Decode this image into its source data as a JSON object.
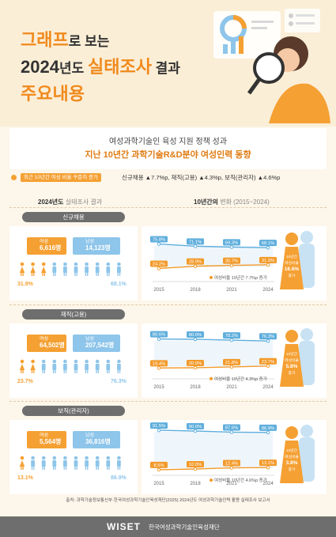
{
  "title": {
    "line1_a": "그래프",
    "line1_b": "로 보는",
    "line2_a": "2024",
    "line2_b": "년도 ",
    "line2_c": "실태조사",
    "line2_d": " 결과",
    "line3": "주요내용"
  },
  "subtitle1": "여성과학기술인 육성 지원 정책 성과",
  "subtitle2": "지난 10년간 과학기술R&D분야 여성인력 동향",
  "highlight_label": "최근 10년간 여성 비율 꾸준히 증가",
  "highlight_text": "신규채용 ▲7.7%p, 재직(고용) ▲4.3%p, 보직(관리자) ▲4.6%p",
  "col_left": {
    "title": "2024년도",
    "sub": "실태조사 결과"
  },
  "col_right": {
    "title": "10년간의",
    "sub": "변화 (2015~2024)"
  },
  "colors": {
    "female": "#f5a033",
    "male": "#8ec5ea",
    "female_line": "#f39a2a",
    "male_line": "#5faedc"
  },
  "sections": [
    {
      "tag": "신규채용",
      "female_label": "여성",
      "female_value": "6,616명",
      "male_label": "남성",
      "male_value": "14,123명",
      "female_pct": "31.9%",
      "male_pct": "68.1%",
      "female_figures": 3,
      "change_note": "여성비율 10년간 7.7%p 증가",
      "callout": [
        "10년간",
        "여성비율",
        "16.6%",
        "증가"
      ]
    },
    {
      "tag": "재직(고용)",
      "female_label": "여성",
      "female_value": "64,502명",
      "male_label": "남성",
      "male_value": "207,542명",
      "female_pct": "23.7%",
      "male_pct": "76.3%",
      "female_figures": 2,
      "change_note": "여성비율 10년간 4.3%p 증가",
      "callout": [
        "10년간",
        "여성비율",
        "5.8%",
        "증가"
      ]
    },
    {
      "tag": "보직(관리자)",
      "female_label": "여성",
      "female_value": "5,564명",
      "male_label": "남성",
      "male_value": "36,816명",
      "female_pct": "13.1%",
      "male_pct": "86.9%",
      "female_figures": 1,
      "change_note": "여성비율 10년간 4.6%p 증가",
      "callout": [
        "10년간",
        "여성비율",
        "3.8%",
        "증가"
      ]
    }
  ],
  "chart_data": [
    {
      "type": "line",
      "title": "신규채용",
      "x": [
        "2015",
        "2018",
        "2021",
        "2024"
      ],
      "series": [
        {
          "name": "남성",
          "values": [
            75.8,
            71.1,
            69.3,
            68.1
          ],
          "labels": [
            "75.8%",
            "71.1%",
            "69.3%",
            "68.1%"
          ]
        },
        {
          "name": "여성",
          "values": [
            24.2,
            28.9,
            30.7,
            31.9
          ],
          "labels": [
            "24.2%",
            "28.9%",
            "30.7%",
            "31.9%"
          ]
        }
      ]
    },
    {
      "type": "line",
      "title": "재직(고용)",
      "x": [
        "2015",
        "2018",
        "2021",
        "2024"
      ],
      "series": [
        {
          "name": "남성",
          "values": [
            80.6,
            80.0,
            78.2,
            76.3
          ],
          "labels": [
            "80.6%",
            "80.0%",
            "78.2%",
            "76.3%"
          ]
        },
        {
          "name": "여성",
          "values": [
            19.4,
            20.0,
            21.8,
            23.7
          ],
          "labels": [
            "19.4%",
            "20.0%",
            "21.8%",
            "23.7%"
          ]
        }
      ]
    },
    {
      "type": "line",
      "title": "보직(관리자)",
      "x": [
        "2015",
        "2018",
        "2021",
        "2024"
      ],
      "series": [
        {
          "name": "남성",
          "values": [
            91.5,
            90.0,
            87.6,
            86.9
          ],
          "labels": [
            "91.5%",
            "90.0%",
            "87.6%",
            "86.9%"
          ]
        },
        {
          "name": "여성",
          "values": [
            8.5,
            10.0,
            12.4,
            13.1
          ],
          "labels": [
            "8.5%",
            "10.0%",
            "12.4%",
            "13.1%"
          ]
        }
      ]
    }
  ],
  "source": "출처: 과학기술정보통신부·한국여성과학기술인육성재단(2025) 2024년도 여성과학기술인력 활용 실태조사 보고서",
  "footer": {
    "logo": "WISET",
    "org": "한국여성과학기술인육성재단"
  }
}
